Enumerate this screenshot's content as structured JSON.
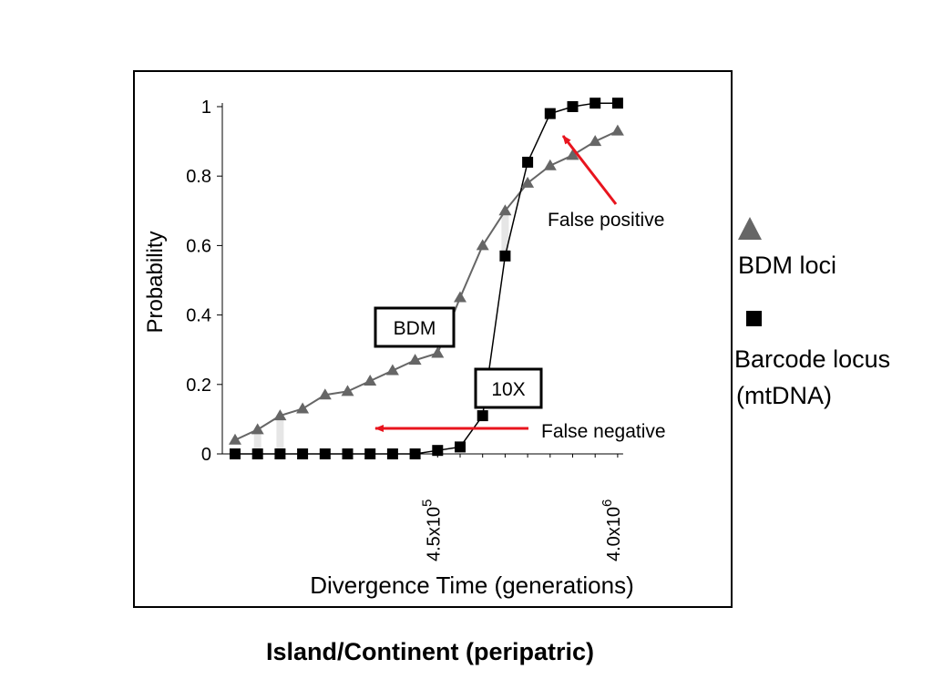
{
  "chart_data": {
    "type": "line",
    "xlabel": "Divergence Time (generations)",
    "ylabel": "Probability",
    "ylim": [
      0,
      1
    ],
    "yticks": [
      "0",
      "0.2",
      "0.4",
      "0.6",
      "0.8",
      "1"
    ],
    "x_tick_labels": [
      "4.5x10",
      "4.0x10"
    ],
    "x_tick_exponents": [
      "5",
      "6"
    ],
    "x_index": [
      1,
      2,
      3,
      4,
      5,
      6,
      7,
      8,
      9,
      10,
      11,
      12,
      13,
      14,
      15,
      16,
      17,
      18
    ],
    "grid": false,
    "series": [
      {
        "name": "BDM loci",
        "marker": "triangle",
        "color": "#666666",
        "values": [
          0.04,
          0.07,
          0.11,
          0.13,
          0.17,
          0.18,
          0.21,
          0.24,
          0.27,
          0.29,
          0.45,
          0.6,
          0.7,
          0.78,
          0.83,
          0.86,
          0.9,
          0.93
        ]
      },
      {
        "name": "Barcode locus (mtDNA)",
        "marker": "square",
        "color": "#000000",
        "values": [
          0.0,
          0.0,
          0.0,
          0.0,
          0.0,
          0.0,
          0.0,
          0.0,
          0.0,
          0.01,
          0.02,
          0.11,
          0.57,
          0.84,
          0.98,
          1.0,
          1.01,
          1.01
        ]
      }
    ],
    "annotations": {
      "bdm_box": "BDM",
      "tenx_box": "10X",
      "false_positive": "False positive",
      "false_negative": "False negative"
    },
    "annotation_color": "#e8141e"
  },
  "legend": {
    "bdm_label": "BDM loci",
    "barcode_label_line1": "Barcode locus",
    "barcode_label_line2": "(mtDNA)"
  },
  "caption": "Island/Continent  (peripatric)"
}
